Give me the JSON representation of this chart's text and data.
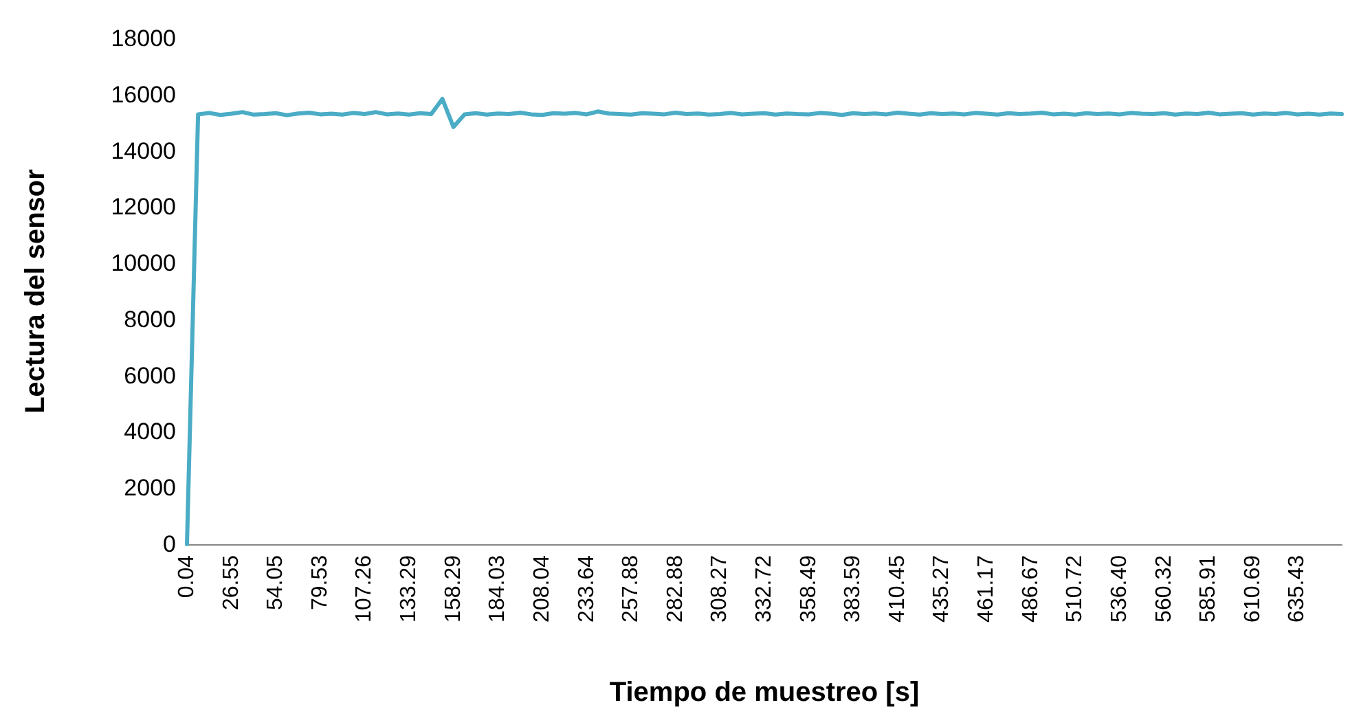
{
  "chart_data": {
    "type": "line",
    "xlabel": "Tiempo de muestreo [s]",
    "ylabel": "Lectura del sensor",
    "categories": [
      "0.04",
      null,
      null,
      null,
      "26.55",
      null,
      null,
      null,
      "54.05",
      null,
      null,
      null,
      "79.53",
      null,
      null,
      null,
      "107.26",
      null,
      null,
      null,
      "133.29",
      null,
      null,
      null,
      "158.29",
      null,
      null,
      null,
      "184.03",
      null,
      null,
      null,
      "208.04",
      null,
      null,
      null,
      "233.64",
      null,
      null,
      null,
      "257.88",
      null,
      null,
      null,
      "282.88",
      null,
      null,
      null,
      "308.27",
      null,
      null,
      null,
      "332.72",
      null,
      null,
      null,
      "358.49",
      null,
      null,
      null,
      "383.59",
      null,
      null,
      null,
      "410.45",
      null,
      null,
      null,
      "435.27",
      null,
      null,
      null,
      "461.17",
      null,
      null,
      null,
      "486.67",
      null,
      null,
      null,
      "510.72",
      null,
      null,
      null,
      "536.40",
      null,
      null,
      null,
      "560.32",
      null,
      null,
      null,
      "585.91",
      null,
      null,
      null,
      "610.69",
      null,
      null,
      null,
      "635.43",
      null,
      null,
      null,
      null
    ],
    "series": [
      {
        "color": "#4bacc6",
        "values": [
          0,
          15300,
          15350,
          15280,
          15320,
          15380,
          15290,
          15310,
          15340,
          15270,
          15330,
          15360,
          15300,
          15320,
          15290,
          15350,
          15310,
          15380,
          15300,
          15330,
          15290,
          15340,
          15310,
          15850,
          14850,
          15300,
          15340,
          15290,
          15330,
          15310,
          15360,
          15300,
          15280,
          15340,
          15320,
          15350,
          15300,
          15400,
          15330,
          15310,
          15290,
          15340,
          15320,
          15300,
          15360,
          15310,
          15330,
          15290,
          15310,
          15350,
          15300,
          15320,
          15340,
          15290,
          15330,
          15310,
          15300,
          15350,
          15320,
          15280,
          15340,
          15310,
          15330,
          15300,
          15360,
          15320,
          15290,
          15340,
          15310,
          15330,
          15300,
          15350,
          15320,
          15290,
          15340,
          15310,
          15330,
          15360,
          15300,
          15320,
          15290,
          15340,
          15310,
          15330,
          15300,
          15350,
          15320,
          15310,
          15340,
          15290,
          15330,
          15310,
          15360,
          15300,
          15320,
          15340,
          15290,
          15330,
          15310,
          15350,
          15300,
          15320,
          15290,
          15330,
          15310
        ]
      }
    ],
    "ylim": [
      0,
      18000
    ],
    "yticks": [
      0,
      2000,
      4000,
      6000,
      8000,
      10000,
      12000,
      14000,
      16000,
      18000
    ],
    "grid": false,
    "marker": "none",
    "line_style": "solid"
  }
}
